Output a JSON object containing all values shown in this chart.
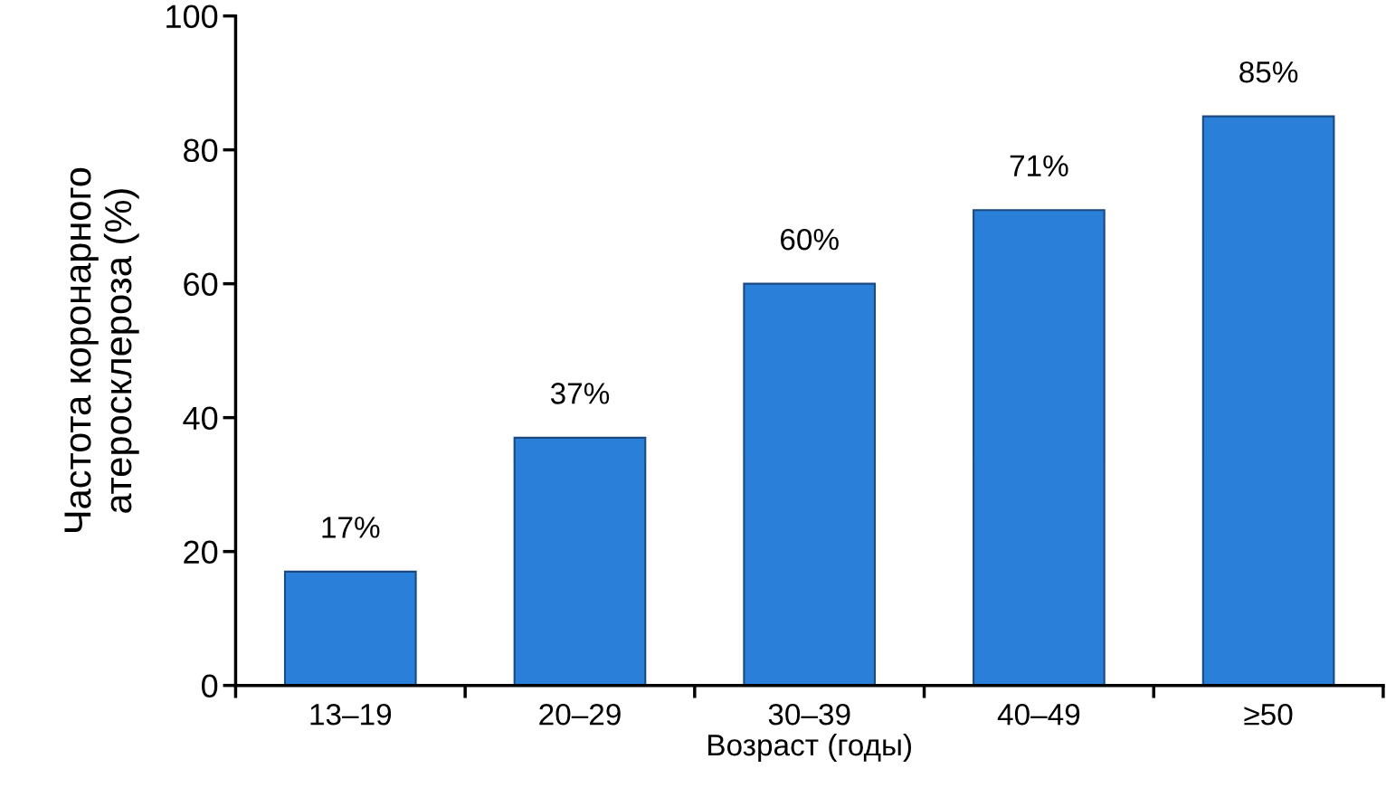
{
  "chart_data": {
    "type": "bar",
    "xlabel": "Возраст (годы)",
    "ylabel": "Частота коронарного\nатеросклероза (%)",
    "categories": [
      "13–19",
      "20–29",
      "30–39",
      "40–49",
      "≥50"
    ],
    "values": [
      17,
      37,
      60,
      71,
      85
    ],
    "value_labels": [
      "17%",
      "37%",
      "60%",
      "71%",
      "85%"
    ],
    "color": "#2a7fd8",
    "ylim": [
      0,
      100
    ],
    "yticks": [
      0,
      20,
      40,
      60,
      80,
      100
    ],
    "grid": false,
    "legend": false
  }
}
